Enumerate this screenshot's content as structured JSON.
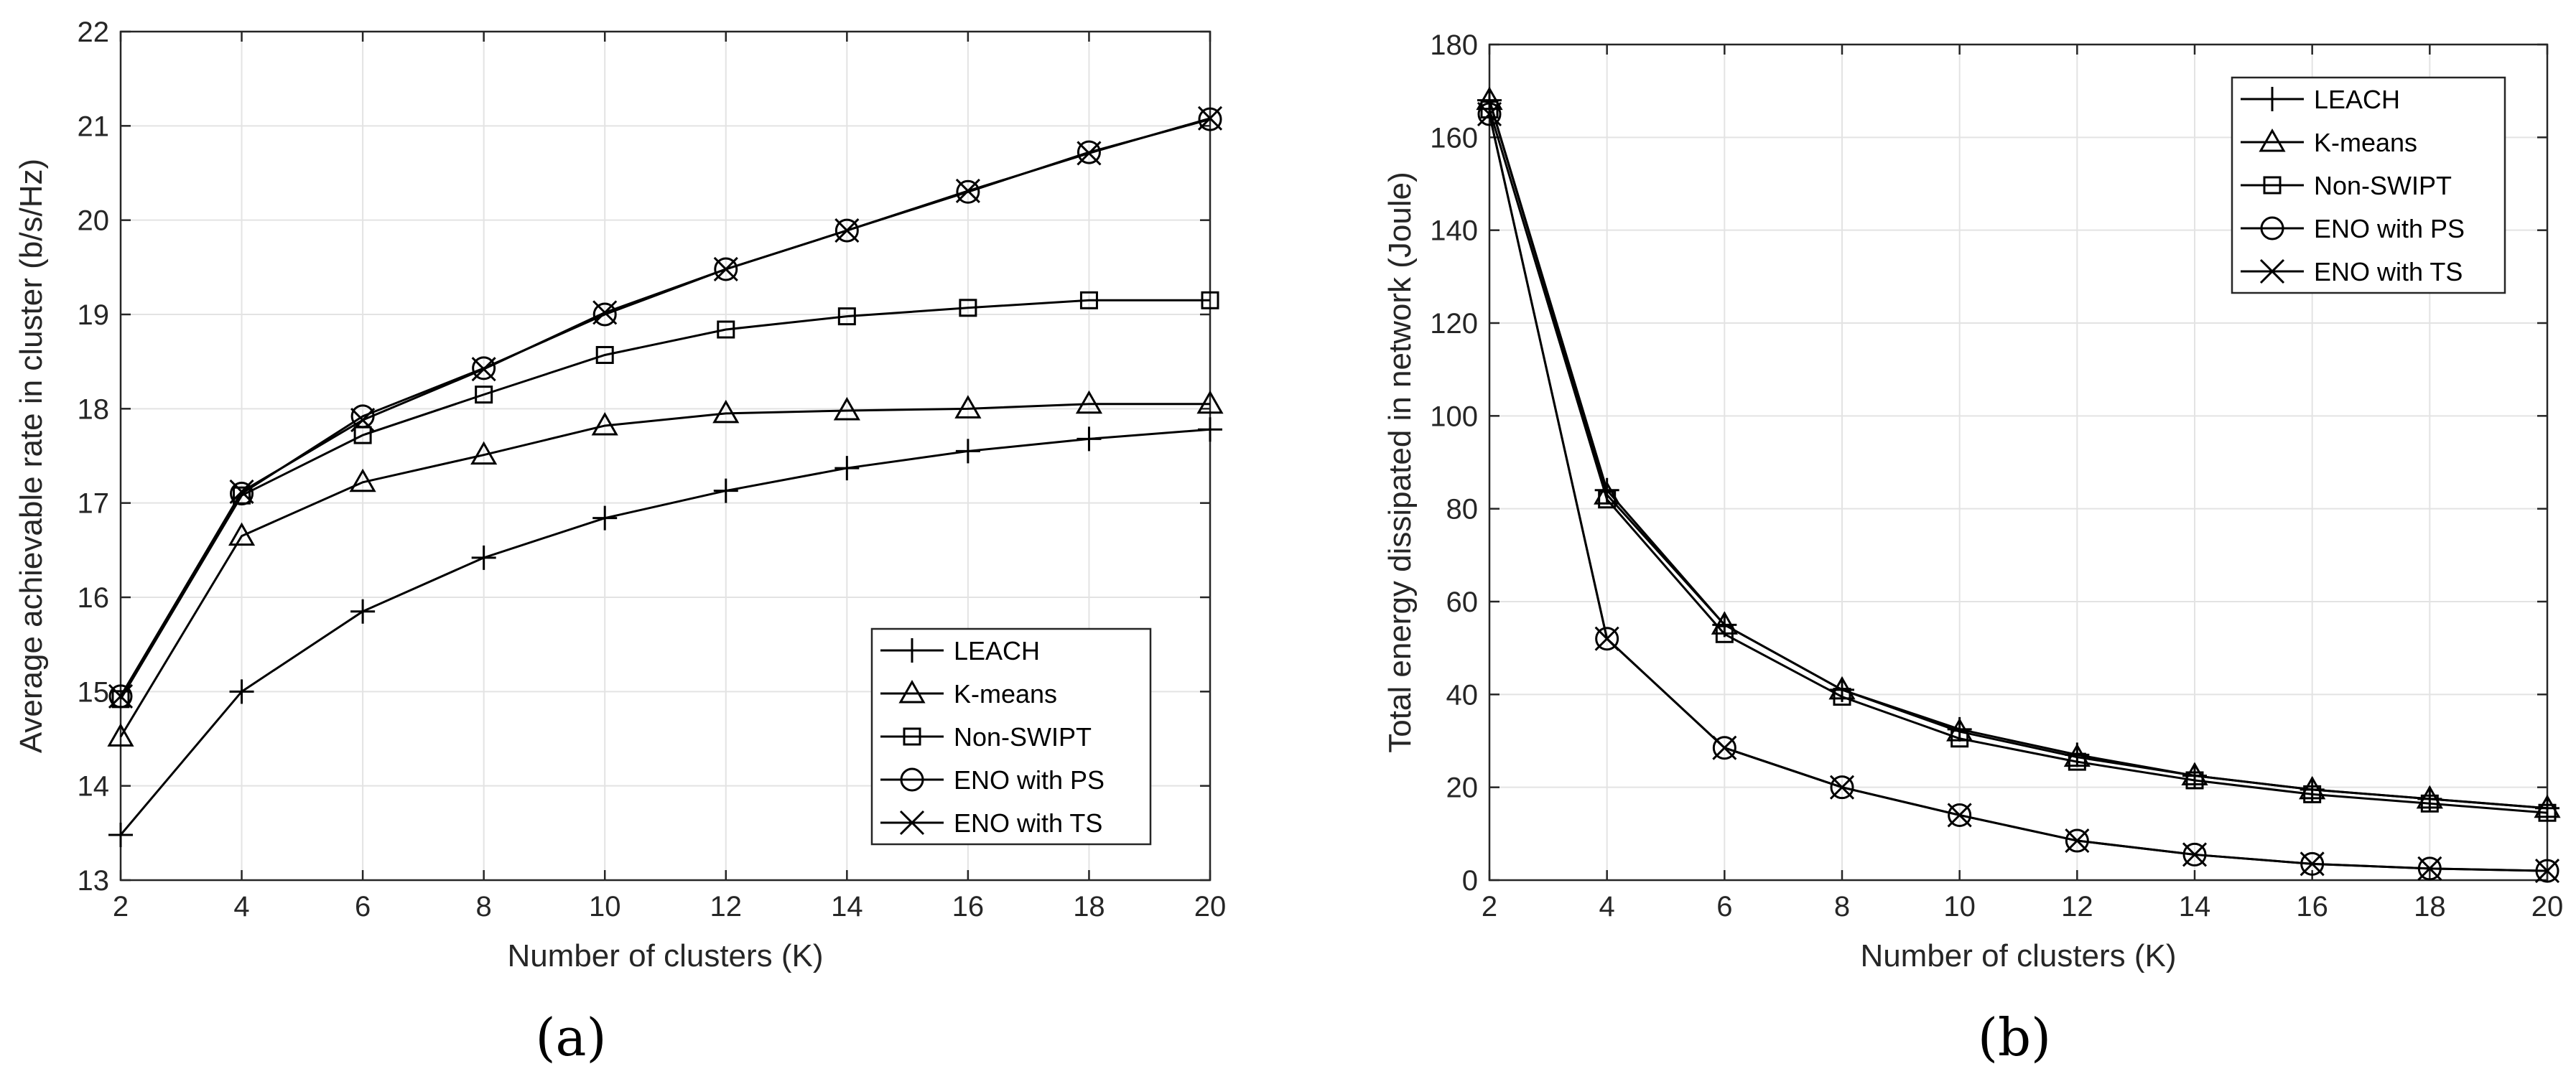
{
  "chart_data": [
    {
      "type": "line",
      "caption": "(a)",
      "xlabel": "Number of clusters (K)",
      "ylabel": "Average achievable rate in cluster (b/s/Hz)",
      "xlim": [
        2,
        20
      ],
      "ylim": [
        13,
        22
      ],
      "xticks": [
        2,
        4,
        6,
        8,
        10,
        12,
        14,
        16,
        18,
        20
      ],
      "yticks": [
        13,
        14,
        15,
        16,
        17,
        18,
        19,
        20,
        21,
        22
      ],
      "grid": true,
      "legend_position": "bottom-right",
      "x": [
        2,
        4,
        6,
        8,
        10,
        12,
        14,
        16,
        18,
        20
      ],
      "series": [
        {
          "name": "LEACH",
          "marker": "plus",
          "values": [
            13.48,
            15.0,
            15.85,
            16.42,
            16.84,
            17.13,
            17.37,
            17.55,
            17.68,
            17.78
          ]
        },
        {
          "name": "K-means",
          "marker": "triangle",
          "values": [
            14.52,
            16.65,
            17.22,
            17.51,
            17.82,
            17.95,
            17.98,
            18.0,
            18.05,
            18.05
          ]
        },
        {
          "name": "Non-SWIPT",
          "marker": "square",
          "values": [
            14.92,
            17.08,
            17.72,
            18.15,
            18.57,
            18.84,
            18.98,
            19.07,
            19.15,
            19.15
          ]
        },
        {
          "name": "ENO with PS",
          "marker": "circle",
          "values": [
            14.95,
            17.1,
            17.92,
            18.43,
            19.0,
            19.48,
            19.89,
            20.3,
            20.72,
            21.07
          ]
        },
        {
          "name": "ENO with TS",
          "marker": "x",
          "values": [
            14.95,
            17.12,
            17.88,
            18.42,
            19.02,
            19.48,
            19.89,
            20.31,
            20.71,
            21.08
          ]
        }
      ]
    },
    {
      "type": "line",
      "caption": "(b)",
      "xlabel": "Number of clusters (K)",
      "ylabel": "Total energy dissipated in network (Joule)",
      "xlim": [
        2,
        20
      ],
      "ylim": [
        0,
        180
      ],
      "xticks": [
        2,
        4,
        6,
        8,
        10,
        12,
        14,
        16,
        18,
        20
      ],
      "yticks": [
        0,
        20,
        40,
        60,
        80,
        100,
        120,
        140,
        160,
        180
      ],
      "grid": true,
      "legend_position": "top-right",
      "x": [
        2,
        4,
        6,
        8,
        10,
        12,
        14,
        16,
        18,
        20
      ],
      "series": [
        {
          "name": "LEACH",
          "marker": "plus",
          "values": [
            168,
            84,
            55,
            41,
            32.5,
            27,
            22.5,
            19.5,
            17.5,
            15.5
          ]
        },
        {
          "name": "K-means",
          "marker": "triangle",
          "values": [
            168,
            83,
            55,
            41,
            32,
            26.5,
            22.5,
            19.5,
            17.5,
            15.5
          ]
        },
        {
          "name": "Non-SWIPT",
          "marker": "square",
          "values": [
            166,
            82,
            53,
            39.5,
            30.5,
            25.5,
            21.5,
            18.5,
            16.5,
            14.5
          ]
        },
        {
          "name": "ENO with PS",
          "marker": "circle",
          "values": [
            165,
            52,
            28.5,
            20,
            14,
            8.5,
            5.5,
            3.5,
            2.5,
            2
          ]
        },
        {
          "name": "ENO with TS",
          "marker": "x",
          "values": [
            165,
            52,
            28.5,
            20,
            14,
            8.5,
            5.5,
            3.5,
            2.5,
            2
          ]
        }
      ]
    }
  ]
}
